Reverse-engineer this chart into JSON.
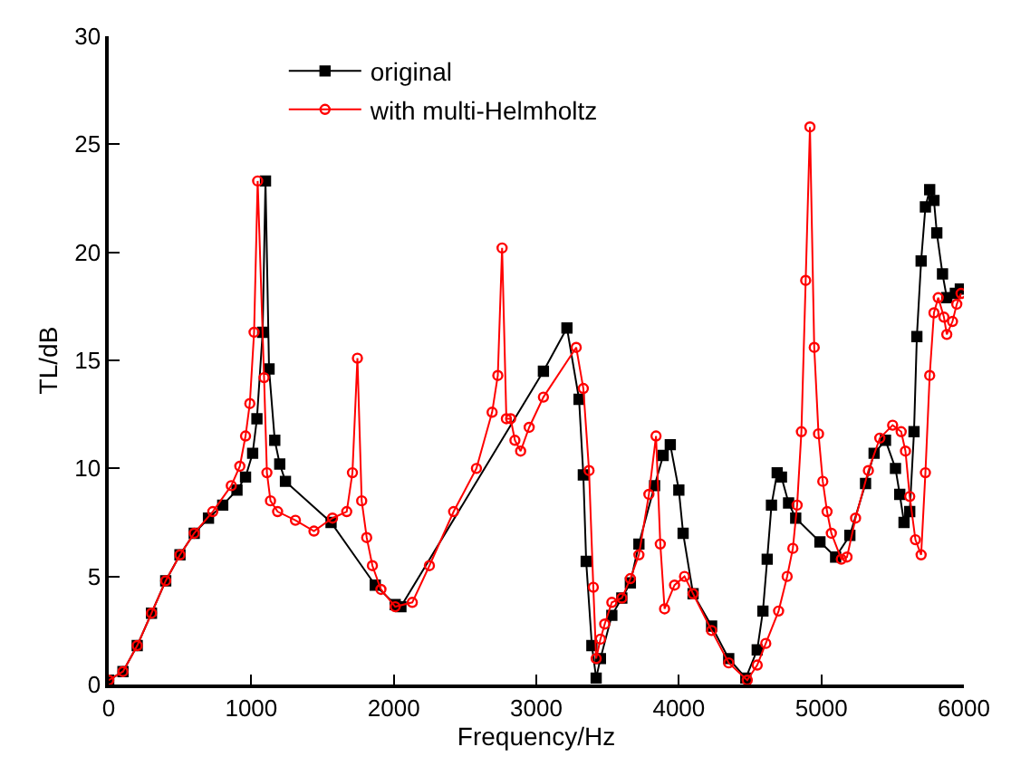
{
  "chart_data": {
    "type": "line",
    "xlabel": "Frequency/Hz",
    "ylabel": "TL/dB",
    "xlim": [
      0,
      6000
    ],
    "xticks": [
      0,
      1000,
      2000,
      3000,
      4000,
      5000,
      6000
    ],
    "ylim": [
      0,
      30
    ],
    "yticks": [
      0,
      5,
      10,
      15,
      20,
      25,
      30
    ],
    "legend": "top left",
    "series": [
      {
        "name": "original",
        "color": "#000000",
        "marker": "square",
        "x": [
          0,
          100,
          200,
          300,
          400,
          500,
          600,
          700,
          800,
          900,
          960,
          1010,
          1040,
          1080,
          1100,
          1125,
          1165,
          1200,
          1240,
          1560,
          1870,
          2010,
          2050,
          3050,
          3215,
          3300,
          3330,
          3350,
          3390,
          3420,
          3450,
          3530,
          3600,
          3660,
          3720,
          3830,
          3890,
          3940,
          4000,
          4030,
          4100,
          4230,
          4350,
          4470,
          4550,
          4590,
          4620,
          4650,
          4690,
          4720,
          4770,
          4820,
          4990,
          5100,
          5200,
          5310,
          5370,
          5450,
          5520,
          5550,
          5580,
          5620,
          5650,
          5670,
          5700,
          5730,
          5760,
          5790,
          5810,
          5850,
          5880,
          5940,
          5975
        ],
        "values": [
          0.2,
          0.6,
          1.8,
          3.3,
          4.8,
          6.0,
          7.0,
          7.7,
          8.3,
          9.0,
          9.6,
          10.7,
          12.3,
          16.3,
          23.3,
          14.6,
          11.3,
          10.2,
          9.4,
          7.5,
          4.6,
          3.7,
          3.6,
          14.5,
          16.5,
          13.2,
          9.7,
          5.7,
          1.8,
          0.3,
          1.2,
          3.2,
          4.0,
          4.7,
          6.5,
          9.2,
          10.6,
          11.1,
          9.0,
          7.0,
          4.2,
          2.7,
          1.2,
          0.3,
          1.6,
          3.4,
          5.8,
          8.3,
          9.8,
          9.6,
          8.4,
          7.7,
          6.6,
          5.9,
          6.9,
          9.3,
          10.7,
          11.3,
          10.0,
          8.8,
          7.5,
          8.0,
          11.7,
          16.1,
          19.6,
          22.1,
          22.9,
          22.4,
          20.9,
          19.0,
          17.9,
          18.1,
          18.3
        ]
      },
      {
        "name": "with multi-Helmholtz",
        "color": "#ff0000",
        "marker": "circle",
        "x": [
          0,
          100,
          200,
          300,
          400,
          500,
          600,
          730,
          860,
          920,
          960,
          990,
          1020,
          1045,
          1090,
          1110,
          1135,
          1185,
          1310,
          1440,
          1570,
          1670,
          1710,
          1745,
          1775,
          1810,
          1850,
          1910,
          2010,
          2130,
          2250,
          2420,
          2580,
          2690,
          2730,
          2760,
          2790,
          2820,
          2850,
          2890,
          2950,
          3050,
          3280,
          3330,
          3370,
          3400,
          3420,
          3450,
          3480,
          3530,
          3600,
          3660,
          3720,
          3790,
          3840,
          3870,
          3900,
          3970,
          4040,
          4100,
          4230,
          4350,
          4480,
          4550,
          4610,
          4700,
          4760,
          4800,
          4830,
          4860,
          4890,
          4920,
          4950,
          4980,
          5010,
          5040,
          5070,
          5140,
          5180,
          5240,
          5330,
          5410,
          5500,
          5560,
          5590,
          5620,
          5660,
          5700,
          5730,
          5760,
          5790,
          5820,
          5860,
          5880,
          5920,
          5950,
          5980
        ],
        "values": [
          0.2,
          0.6,
          1.8,
          3.3,
          4.8,
          6.0,
          7.0,
          8.0,
          9.2,
          10.1,
          11.5,
          13.0,
          16.3,
          23.3,
          14.2,
          9.8,
          8.5,
          8.0,
          7.6,
          7.1,
          7.7,
          8.0,
          9.8,
          15.1,
          8.5,
          6.8,
          5.5,
          4.4,
          3.6,
          3.8,
          5.5,
          8.0,
          10.0,
          12.6,
          14.3,
          20.2,
          12.3,
          12.3,
          11.3,
          10.8,
          11.9,
          13.3,
          15.6,
          13.7,
          9.9,
          4.5,
          1.2,
          2.1,
          2.8,
          3.8,
          4.0,
          4.9,
          6.0,
          8.8,
          11.5,
          6.5,
          3.5,
          4.6,
          5.0,
          4.2,
          2.5,
          1.0,
          0.2,
          0.9,
          1.9,
          3.4,
          5.0,
          6.3,
          8.3,
          11.7,
          18.7,
          25.8,
          15.6,
          11.6,
          9.4,
          8.0,
          7.0,
          5.8,
          5.9,
          7.7,
          9.9,
          11.4,
          12.0,
          11.7,
          10.8,
          8.7,
          6.7,
          6.0,
          9.8,
          14.3,
          17.2,
          17.9,
          17.0,
          16.2,
          16.8,
          17.6,
          18.1
        ]
      }
    ]
  }
}
